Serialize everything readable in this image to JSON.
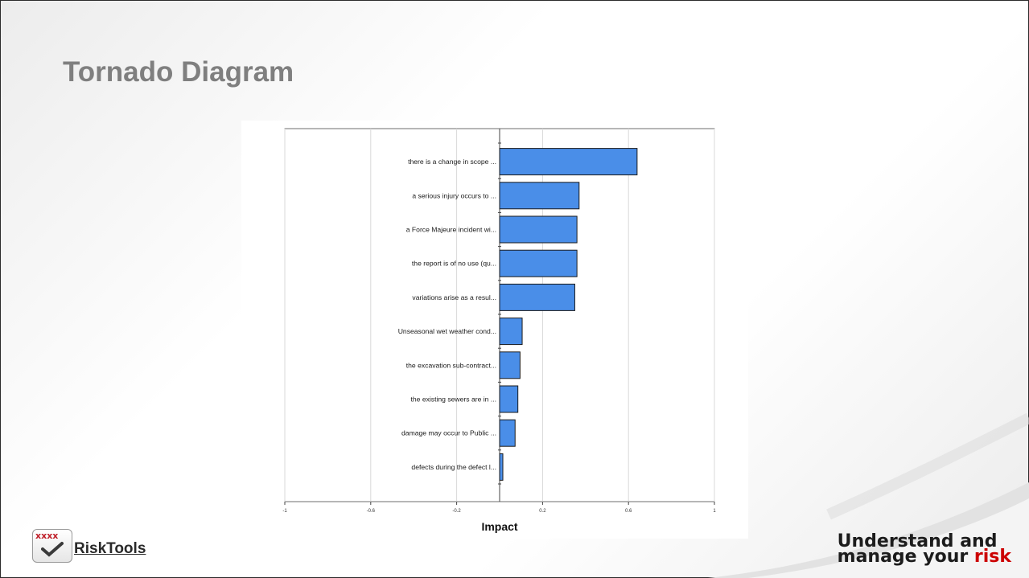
{
  "slide": {
    "title": "Tornado Diagram",
    "tagline_line1": "Understand and",
    "tagline_line2_prefix": "manage your ",
    "tagline_line2_accent": "risk",
    "logo_text": "RiskTools",
    "logo_marks": "xxxx"
  },
  "colors": {
    "bar": "#4a8ee8",
    "bar_stroke": "#1a1a1a",
    "title": "#7f7f7f",
    "accent": "#cc0000"
  },
  "chart_data": {
    "type": "bar",
    "orientation": "horizontal",
    "title": "",
    "xlabel": "Impact",
    "ylabel": "",
    "xlim": [
      -1,
      1
    ],
    "x_ticks": [
      {
        "value": -1,
        "label": "-1"
      },
      {
        "value": -0.6,
        "label": "-0.6"
      },
      {
        "value": -0.2,
        "label": "-0.2"
      },
      {
        "value": 0.2,
        "label": "0.2"
      },
      {
        "value": 0.6,
        "label": "0.6"
      },
      {
        "value": 1,
        "label": "1"
      }
    ],
    "grid": true,
    "categories": [
      "there is a change in scope ...",
      "a serious injury occurs to ...",
      "a Force Majeure incident wi...",
      "the report is of no use (qu...",
      "variations arise as a resul...",
      "Unseasonal wet weather cond...",
      "the excavation sub-contract...",
      "the existing sewers are in ...",
      "damage may occur to Public ...",
      "defects during the defect l..."
    ],
    "values": [
      0.64,
      0.37,
      0.36,
      0.36,
      0.35,
      0.105,
      0.095,
      0.085,
      0.072,
      0.015
    ]
  }
}
